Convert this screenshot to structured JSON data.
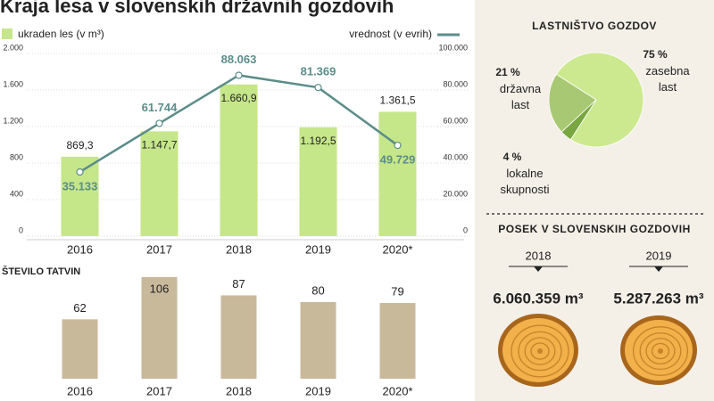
{
  "chart_data": [
    {
      "type": "combo",
      "title": "Kraja lesa v slovenskih državnih gozdovih",
      "categories": [
        "2016",
        "2017",
        "2018",
        "2019",
        "2020*"
      ],
      "series": [
        {
          "name": "ukraden les (v m³)",
          "color": "#c6e68a",
          "values": [
            869.3,
            1147.7,
            1660.9,
            1192.5,
            1361.5
          ],
          "value_labels": [
            "869,3",
            "1.147,7",
            "1.660,9",
            "1.192,5",
            "1.361,5"
          ]
        },
        {
          "name": "vrednost (v evrih)",
          "color": "#5b8d8a",
          "axis": "y2",
          "values": [
            35133,
            61744,
            88063,
            81369,
            49729
          ],
          "value_labels": [
            "35.133",
            "61.744",
            "88.063",
            "81.369",
            "49.729"
          ]
        }
      ],
      "ylim": [
        0,
        2000
      ],
      "yticks": [
        0,
        400,
        800,
        {
          "value": 1200,
          "label": "1.200"
        },
        {
          "value": 1600,
          "label": "1.600"
        },
        {
          "value": 2000,
          "label": "2.000"
        }
      ],
      "y2lim": [
        0,
        100000
      ],
      "y2ticks": [
        0,
        {
          "value": 20000,
          "label": "20.000"
        },
        {
          "value": 40000,
          "label": "40.000"
        },
        {
          "value": 60000,
          "label": "60.000"
        },
        {
          "value": 80000,
          "label": "80.000"
        },
        {
          "value": 100000,
          "label": "100.000"
        }
      ],
      "grid": true
    },
    {
      "type": "bar",
      "title": "ŠTEVILO TATVIN",
      "color": "#c9b99b",
      "categories": [
        "2016",
        "2017",
        "2018",
        "2019",
        "2020*"
      ],
      "values": [
        62,
        106,
        87,
        80,
        79
      ]
    },
    {
      "type": "pie",
      "title": "LASTNIŠTVO GOZDOV",
      "categories": [
        "zasebna last",
        "državna last",
        "lokalne skupnosti"
      ],
      "values": [
        75,
        21,
        4
      ],
      "value_labels": [
        "75 %",
        "21 %",
        "4 %"
      ],
      "colors": [
        "#cce98f",
        "#a9c874",
        "#78a640"
      ]
    },
    {
      "type": "pictogram",
      "title": "POSEK V SLOVENSKIH GOZDOVIH",
      "categories": [
        "2018",
        "2019"
      ],
      "values": [
        6060359,
        5287263
      ],
      "value_labels": [
        "6.060.359 m³",
        "5.287.263 m³"
      ]
    }
  ]
}
